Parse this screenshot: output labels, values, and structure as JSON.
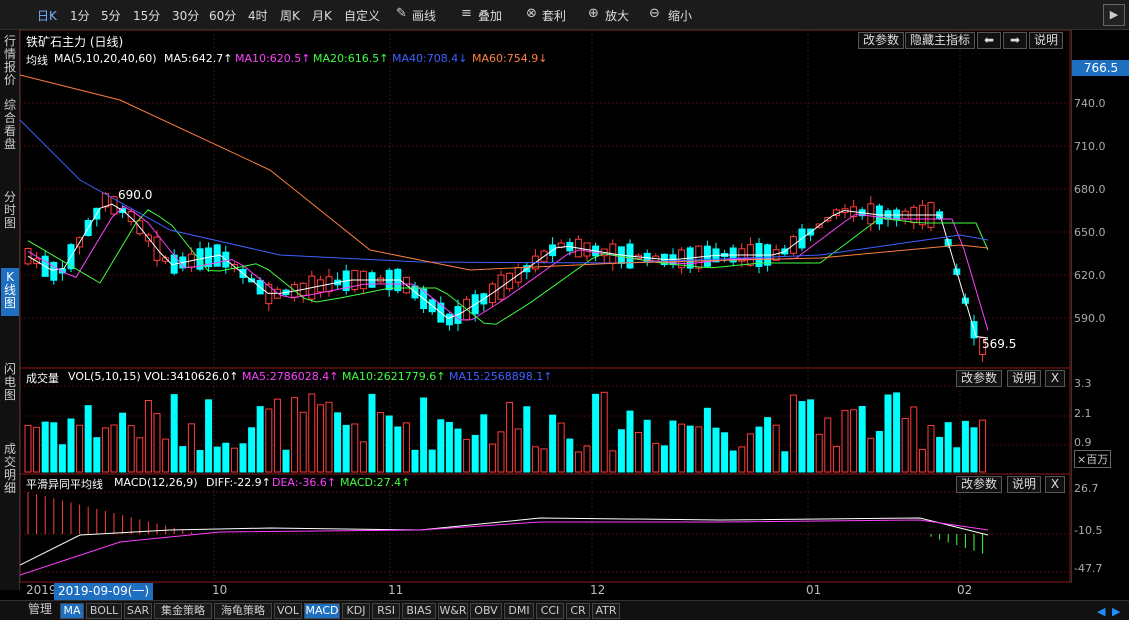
{
  "toolbar": {
    "items": [
      "日K",
      "1分",
      "5分",
      "15分",
      "30分",
      "60分",
      "4时",
      "周K",
      "月K",
      "自定义"
    ],
    "draw": "画线",
    "overlay": "叠加",
    "arb": "套利",
    "zoom_in": "放大",
    "zoom_out": "缩小"
  },
  "sidebar": {
    "items": [
      "行情报价",
      "综合看盘",
      "分时图",
      "K线图",
      "闪电图",
      "成交明细"
    ]
  },
  "main": {
    "title": "铁矿石主力 (日线)",
    "ma_label": "均线",
    "ma_params": "MA(5,10,20,40,60)",
    "ma5": "MA5:642.7↑",
    "ma10": "MA10:620.5↑",
    "ma20": "MA20:616.5↑",
    "ma40": "MA40:708.4↓",
    "ma60": "MA60:754.9↓",
    "btn_params": "改参数",
    "btn_hide": "隐藏主指标",
    "btn_explain": "说明",
    "high_label": "690.0",
    "low_label": "569.5",
    "current": "766.5",
    "yticks": [
      "740.0",
      "710.0",
      "680.0",
      "650.0",
      "620.0",
      "590.0"
    ]
  },
  "vol": {
    "label": "成交量",
    "params": "VOL(5,10,15)",
    "vol": "VOL:3410626.0↑",
    "ma5": "MA5:2786028.4↑",
    "ma10": "MA10:2621779.6↑",
    "ma15": "MA15:2568898.1↑",
    "yticks": [
      "3.3",
      "2.1",
      "0.9"
    ],
    "unit": "×百万",
    "btn_params": "改参数",
    "btn_explain": "说明",
    "close": "X"
  },
  "macd": {
    "label": "平滑异同平均线",
    "params": "MACD(12,26,9)",
    "diff": "DIFF:-22.9↑",
    "dea": "DEA:-36.6↑",
    "macdv": "MACD:27.4↑",
    "yticks": [
      "26.7",
      "-10.5",
      "-47.7"
    ],
    "btn_params": "改参数",
    "btn_explain": "说明",
    "close": "X"
  },
  "dates": {
    "year": "2019",
    "cursor": "2019-09-09(一)",
    "months": [
      "10",
      "11",
      "12",
      "01",
      "02"
    ]
  },
  "bottom": {
    "manage": "管理",
    "tabs": [
      "MA",
      "BOLL",
      "SAR",
      "集金策略",
      "海龟策略",
      "VOL",
      "MACD",
      "KDJ",
      "RSI",
      "BIAS",
      "W&R",
      "OBV",
      "DMI",
      "CCI",
      "CR",
      "ATR"
    ]
  },
  "colors": {
    "up": "#ff3c3c",
    "down": "#00ffff",
    "ma5": "#ffffff",
    "ma10": "#ff40ff",
    "ma20": "#40ff40",
    "ma40": "#4060ff",
    "ma60": "#ff8040",
    "accent": "#1e6fc0"
  }
}
